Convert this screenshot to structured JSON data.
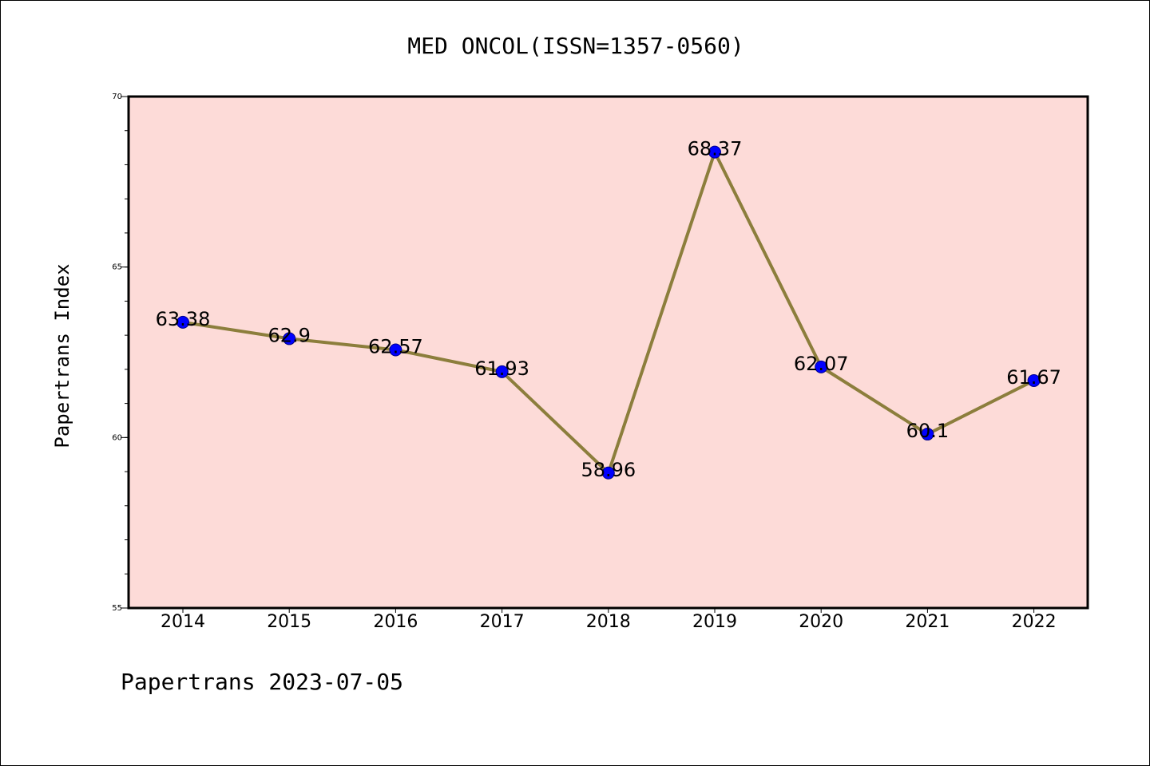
{
  "colors": {
    "plot_background": "#fddbd8",
    "line": "#8c7e3c",
    "marker": "#0000ff",
    "axis": "#000000"
  },
  "chart_data": {
    "type": "line",
    "title": "MED ONCOL(ISSN=1357-0560)",
    "xlabel": "",
    "ylabel": "Papertrans Index",
    "categories": [
      "2014",
      "2015",
      "2016",
      "2017",
      "2018",
      "2019",
      "2020",
      "2021",
      "2022"
    ],
    "series": [
      {
        "values": [
          63.38,
          62.9,
          62.57,
          61.93,
          58.96,
          68.37,
          62.07,
          60.1,
          61.67
        ],
        "labels": [
          "63.38",
          "62.9",
          "62.57",
          "61.93",
          "58.96",
          "68.37",
          "62.07",
          "60.1",
          "61.67"
        ]
      }
    ],
    "ylim": [
      55,
      70
    ],
    "yticks": [
      "55",
      "60",
      "65",
      "70"
    ],
    "grid": false,
    "legend": "none"
  },
  "footer": "Papertrans 2023-07-05"
}
